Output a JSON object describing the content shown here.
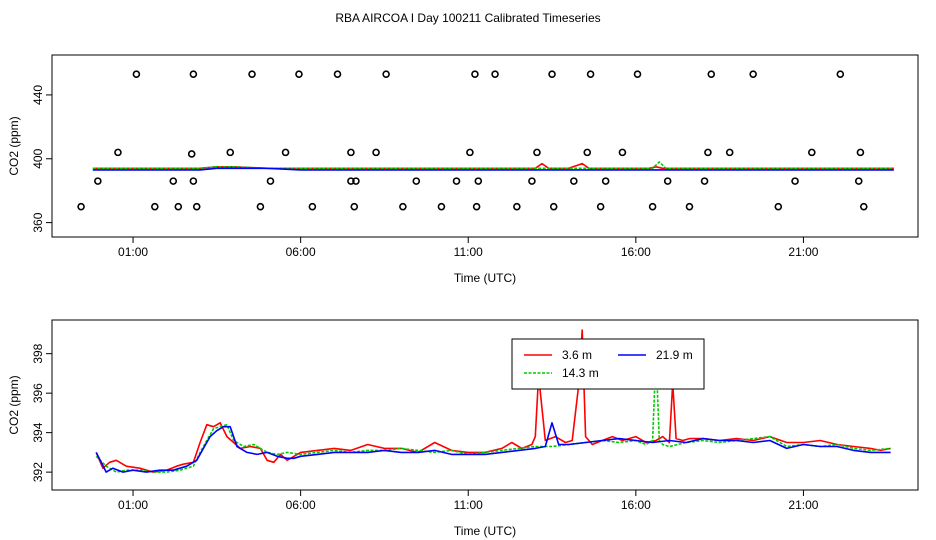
{
  "title": "RBA AIRCOA I  Day 100211  Calibrated Timeseries",
  "colors": {
    "3.6 m": "#ff0000",
    "14.3 m": "#00cc00",
    "21.9 m": "#0000ff",
    "markers": "#000000"
  },
  "chart_data": [
    {
      "type": "line",
      "panel": "top",
      "xlabel": "Time (UTC)",
      "ylabel": "CO2 (ppm)",
      "x_ticks": [
        "01:00",
        "06:00",
        "11:00",
        "16:00",
        "21:00"
      ],
      "x_tick_hours": [
        1,
        6,
        11,
        16,
        21
      ],
      "xlim": [
        -1,
        24
      ],
      "y_ticks": [
        360,
        400,
        440
      ],
      "ylim": [
        356,
        460
      ],
      "grid": false,
      "series": [
        {
          "name": "3.6 m",
          "color": "#ff0000",
          "style": "solid",
          "x": [
            -0.2,
            1,
            2,
            3,
            3.5,
            4,
            5,
            6,
            7,
            8,
            9,
            10,
            11,
            12,
            12.5,
            13,
            13.2,
            13.4,
            14,
            14.4,
            14.6,
            15,
            16,
            16.4,
            16.6,
            16.8,
            17,
            17.2,
            18,
            19,
            20,
            21,
            22,
            23,
            23.7
          ],
          "y": [
            394,
            394,
            394,
            394,
            395,
            395,
            394,
            394,
            394,
            394,
            394,
            394,
            394,
            394,
            394,
            394,
            397,
            394,
            394,
            397,
            394,
            394,
            394,
            394,
            395,
            394,
            394,
            394,
            394,
            394,
            394,
            394,
            394,
            394,
            394
          ]
        },
        {
          "name": "14.3 m",
          "color": "#00cc00",
          "style": "dashed",
          "x": [
            -0.2,
            1,
            2,
            3,
            3.5,
            4,
            5,
            6,
            7,
            8,
            9,
            10,
            11,
            12,
            13,
            14,
            15,
            16,
            16.5,
            16.7,
            16.9,
            17,
            18,
            19,
            20,
            21,
            22,
            23,
            23.7
          ],
          "y": [
            394,
            394,
            394,
            394,
            395,
            395,
            394,
            394,
            394,
            394,
            394,
            394,
            394,
            394,
            394,
            394,
            394,
            394,
            394,
            398,
            394,
            394,
            394,
            394,
            394,
            394,
            394,
            394,
            394
          ]
        },
        {
          "name": "21.9 m",
          "color": "#0000ff",
          "style": "solid",
          "x": [
            -0.2,
            1,
            2,
            3,
            3.5,
            4,
            5,
            6,
            7,
            8,
            9,
            10,
            11,
            12,
            13,
            14,
            15,
            16,
            17,
            18,
            19,
            20,
            21,
            22,
            23,
            23.7
          ],
          "y": [
            393,
            393,
            393,
            393,
            394,
            394,
            394,
            393,
            393,
            393,
            393,
            393,
            393,
            393,
            393,
            393,
            393,
            393,
            393,
            393,
            393,
            393,
            393,
            393,
            393,
            393
          ]
        }
      ],
      "points": {
        "marker": "o",
        "x": [
          -0.55,
          -0.05,
          0.55,
          1.1,
          1.65,
          2.2,
          2.35,
          2.75,
          2.8,
          2.8,
          2.9,
          3.9,
          4.55,
          4.8,
          5.1,
          5.55,
          5.95,
          6.35,
          7.1,
          7.5,
          7.5,
          7.6,
          7.65,
          8.25,
          8.55,
          9.05,
          9.45,
          10.2,
          10.65,
          11.05,
          11.2,
          11.25,
          11.3,
          11.8,
          12.45,
          12.9,
          13.05,
          13.5,
          13.55,
          14.15,
          14.55,
          14.65,
          14.95,
          15.1,
          15.6,
          16.05,
          16.5,
          16.95,
          17.6,
          18.05,
          18.15,
          18.25,
          18.8,
          19.5,
          20.25,
          20.75,
          21.25,
          22.1,
          22.65,
          22.7,
          22.8
        ],
        "y": [
          370,
          386,
          404,
          453,
          370,
          386,
          370,
          403,
          453,
          386,
          370,
          404,
          453,
          370,
          386,
          404,
          453,
          370,
          453,
          404,
          386,
          370,
          386,
          404,
          453,
          370,
          386,
          370,
          386,
          404,
          453,
          370,
          386,
          453,
          370,
          386,
          404,
          453,
          370,
          386,
          404,
          453,
          370,
          386,
          404,
          453,
          370,
          386,
          370,
          386,
          404,
          453,
          404,
          453,
          370,
          386,
          404,
          453,
          386,
          404,
          370
        ]
      }
    },
    {
      "type": "line",
      "panel": "bottom",
      "xlabel": "Time (UTC)",
      "ylabel": "CO2 (ppm)",
      "x_ticks": [
        "01:00",
        "06:00",
        "11:00",
        "16:00",
        "21:00"
      ],
      "x_tick_hours": [
        1,
        6,
        11,
        16,
        21
      ],
      "xlim": [
        -1,
        24
      ],
      "y_ticks": [
        392,
        394,
        396,
        398
      ],
      "ylim": [
        391.5,
        399.3
      ],
      "grid": false,
      "legend": {
        "placement": "top-center",
        "columns": 2
      },
      "series": [
        {
          "name": "3.6 m",
          "color": "#ff0000",
          "style": "solid",
          "x": [
            -0.1,
            0.1,
            0.3,
            0.5,
            0.8,
            1.2,
            1.6,
            2.0,
            2.3,
            2.5,
            2.8,
            3.0,
            3.2,
            3.4,
            3.6,
            3.8,
            4.0,
            4.2,
            4.5,
            4.8,
            5.0,
            5.2,
            5.4,
            5.6,
            6.0,
            6.5,
            7.0,
            7.5,
            8.0,
            8.5,
            9.0,
            9.5,
            10.0,
            10.5,
            11.0,
            11.5,
            12.0,
            12.3,
            12.6,
            12.9,
            13.0,
            13.1,
            13.3,
            13.6,
            13.9,
            14.1,
            14.3,
            14.4,
            14.5,
            14.7,
            15.0,
            15.3,
            15.6,
            16.0,
            16.3,
            16.6,
            16.8,
            17.0,
            17.1,
            17.2,
            17.4,
            17.6,
            18.0,
            18.5,
            19.0,
            19.5,
            20.0,
            20.5,
            21.0,
            21.5,
            22.0,
            22.5,
            23.0,
            23.3,
            23.6
          ],
          "y": [
            393.0,
            392.2,
            392.5,
            392.6,
            392.3,
            392.2,
            392.0,
            392.1,
            392.3,
            392.4,
            392.5,
            393.5,
            394.4,
            394.3,
            394.5,
            393.8,
            393.5,
            393.2,
            393.3,
            393.2,
            392.6,
            392.5,
            392.9,
            392.6,
            393.0,
            393.1,
            393.2,
            393.1,
            393.4,
            393.2,
            393.2,
            393.0,
            393.5,
            393.1,
            393.0,
            393.0,
            393.2,
            393.5,
            393.2,
            393.4,
            393.8,
            396.9,
            393.6,
            393.8,
            393.5,
            393.6,
            396.5,
            399.2,
            393.8,
            393.4,
            393.6,
            393.8,
            393.6,
            393.8,
            393.5,
            393.6,
            393.8,
            393.5,
            396.5,
            393.7,
            393.6,
            393.7,
            393.7,
            393.6,
            393.7,
            393.6,
            393.8,
            393.5,
            393.5,
            393.6,
            393.4,
            393.3,
            393.2,
            393.1,
            393.2
          ]
        },
        {
          "name": "14.3 m",
          "color": "#00cc00",
          "style": "dashed",
          "x": [
            -0.1,
            0.2,
            0.5,
            0.8,
            1.2,
            1.6,
            2.0,
            2.4,
            2.8,
            3.0,
            3.2,
            3.4,
            3.6,
            3.8,
            4.0,
            4.3,
            4.6,
            5.0,
            5.3,
            5.6,
            6.0,
            6.5,
            7.0,
            7.5,
            8.0,
            8.5,
            9.0,
            9.5,
            10.0,
            10.5,
            11.0,
            11.5,
            12.0,
            12.5,
            13.0,
            13.5,
            14.0,
            14.5,
            15.0,
            15.5,
            16.0,
            16.3,
            16.5,
            16.6,
            16.7,
            16.8,
            17.0,
            17.5,
            18.0,
            18.5,
            19.0,
            19.5,
            20.0,
            20.5,
            21.0,
            21.5,
            22.0,
            22.5,
            23.0,
            23.6
          ],
          "y": [
            392.8,
            392.3,
            392.0,
            392.1,
            392.1,
            392.0,
            392.0,
            392.1,
            392.3,
            393.0,
            393.6,
            394.2,
            394.3,
            394.4,
            393.6,
            393.3,
            393.4,
            393.0,
            392.9,
            393.0,
            392.9,
            393.0,
            393.1,
            393.0,
            393.1,
            393.1,
            393.2,
            393.1,
            393.0,
            393.1,
            392.9,
            393.0,
            393.1,
            393.2,
            393.3,
            393.3,
            393.4,
            393.5,
            393.6,
            393.5,
            393.6,
            393.4,
            393.6,
            398.0,
            393.6,
            393.4,
            393.3,
            393.5,
            393.6,
            393.5,
            393.6,
            393.7,
            393.8,
            393.3,
            393.4,
            393.3,
            393.4,
            393.2,
            393.1,
            393.2
          ]
        },
        {
          "name": "21.9 m",
          "color": "#0000ff",
          "style": "solid",
          "x": [
            -0.1,
            0.2,
            0.4,
            0.7,
            1.0,
            1.4,
            1.8,
            2.2,
            2.6,
            2.9,
            3.1,
            3.3,
            3.5,
            3.7,
            3.9,
            4.1,
            4.4,
            4.7,
            5.0,
            5.3,
            5.6,
            5.8,
            6.0,
            6.5,
            7.0,
            7.5,
            8.0,
            8.5,
            9.0,
            9.5,
            10.0,
            10.5,
            11.0,
            11.5,
            12.0,
            12.5,
            13.0,
            13.3,
            13.5,
            13.7,
            14.0,
            14.5,
            15.0,
            15.5,
            16.0,
            16.5,
            17.0,
            17.5,
            18.0,
            18.5,
            19.0,
            19.5,
            20.0,
            20.5,
            21.0,
            21.5,
            22.0,
            22.5,
            23.0,
            23.6
          ],
          "y": [
            393.0,
            392.0,
            392.2,
            392.0,
            392.1,
            392.0,
            392.1,
            392.1,
            392.3,
            392.6,
            393.2,
            393.8,
            394.1,
            394.3,
            394.3,
            393.3,
            393.0,
            392.9,
            393.0,
            392.8,
            392.7,
            392.7,
            392.8,
            392.9,
            393.0,
            393.0,
            393.0,
            393.1,
            393.0,
            393.0,
            393.1,
            392.9,
            392.9,
            392.9,
            393.0,
            393.1,
            393.2,
            393.3,
            394.5,
            393.4,
            393.4,
            393.5,
            393.6,
            393.7,
            393.6,
            393.5,
            393.6,
            393.5,
            393.7,
            393.6,
            393.6,
            393.5,
            393.6,
            393.2,
            393.4,
            393.3,
            393.3,
            393.1,
            393.0,
            393.0
          ]
        }
      ]
    }
  ]
}
